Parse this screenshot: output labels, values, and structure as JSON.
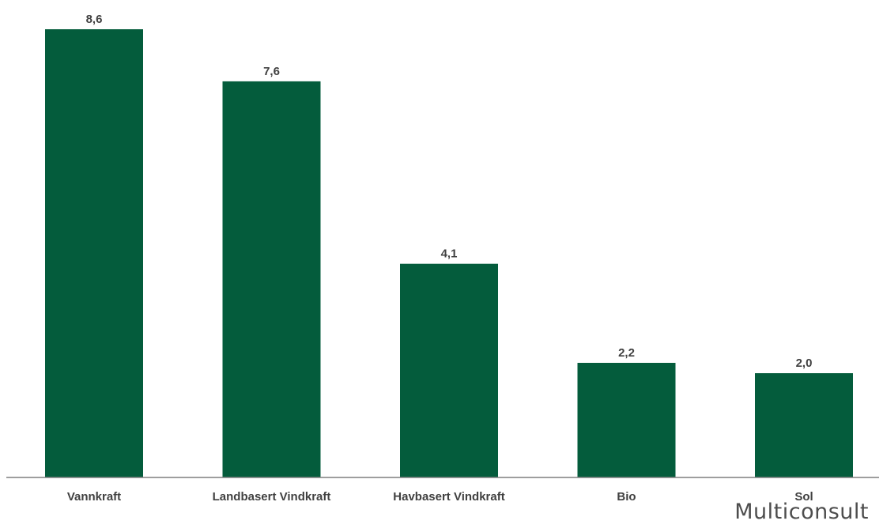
{
  "chart_data": {
    "type": "bar",
    "categories": [
      "Vannkraft",
      "Landbasert Vindkraft",
      "Havbasert Vindkraft",
      "Bio",
      "Sol"
    ],
    "values": [
      8.6,
      7.6,
      4.1,
      2.2,
      2.0
    ],
    "value_labels": [
      "8,6",
      "7,6",
      "4,1",
      "2,2",
      "2,0"
    ],
    "title": "",
    "xlabel": "",
    "ylabel": "",
    "ylim": [
      0,
      8.6
    ],
    "grid": false,
    "legend": "none",
    "bar_color": "#045c3c",
    "axis_color": "#7f7f7f"
  },
  "brand": {
    "logo_text": "Multiconsult"
  }
}
